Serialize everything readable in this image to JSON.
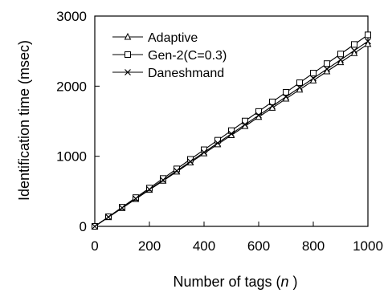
{
  "chart_data": {
    "type": "line",
    "title": "",
    "xlabel": "Number of tags (",
    "xlabel_var": "n",
    "xlabel_suffix": " )",
    "ylabel": "Identification time (msec)",
    "xlim": [
      0,
      1000
    ],
    "ylim": [
      0,
      3000
    ],
    "xticks": [
      0,
      200,
      400,
      600,
      800,
      1000
    ],
    "yticks": [
      0,
      1000,
      2000,
      3000
    ],
    "grid": false,
    "legend_position": "top-left",
    "x": [
      0,
      50,
      100,
      150,
      200,
      250,
      300,
      350,
      400,
      450,
      500,
      550,
      600,
      650,
      700,
      750,
      800,
      850,
      900,
      950,
      1000
    ],
    "series": [
      {
        "name": "Adaptive",
        "marker": "triangle",
        "values": [
          0,
          130,
          260,
          390,
          520,
          650,
          780,
          910,
          1040,
          1170,
          1300,
          1430,
          1560,
          1690,
          1820,
          1950,
          2080,
          2210,
          2340,
          2470,
          2600
        ]
      },
      {
        "name": "Gen-2(C=0.3)",
        "marker": "square",
        "values": [
          0,
          137,
          273,
          410,
          546,
          683,
          820,
          956,
          1093,
          1229,
          1366,
          1503,
          1639,
          1776,
          1912,
          2049,
          2186,
          2322,
          2459,
          2595,
          2732
        ]
      },
      {
        "name": "Daneshmand",
        "marker": "x",
        "values": [
          0,
          132,
          264,
          396,
          528,
          660,
          792,
          924,
          1056,
          1188,
          1320,
          1452,
          1584,
          1716,
          1848,
          1980,
          2112,
          2244,
          2376,
          2508,
          2640
        ]
      }
    ]
  }
}
